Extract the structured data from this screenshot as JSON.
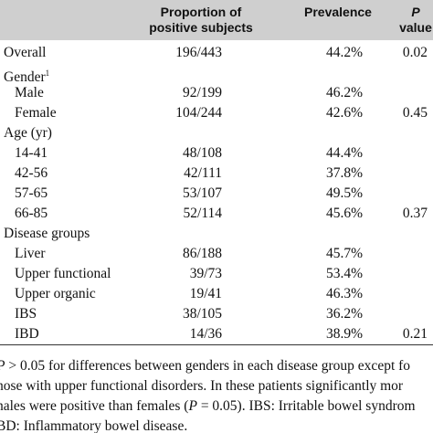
{
  "table": {
    "header": {
      "proportion": [
        "Proportion of",
        "positive subjects"
      ],
      "prevalence": "Prevalence",
      "p": [
        "P",
        "value"
      ]
    },
    "overall": {
      "label": "Overall",
      "proportion": "196/443",
      "prevalence": "44.2%",
      "p": "0.02"
    },
    "groups": [
      {
        "label": "Gender",
        "sup": "1",
        "rows": [
          {
            "label": "Male",
            "proportion": "92/199",
            "prevalence": "46.2%"
          },
          {
            "label": "Female",
            "proportion": "104/244",
            "prevalence": "42.6%",
            "p": "0.45"
          }
        ]
      },
      {
        "label": "Age (yr)",
        "rows": [
          {
            "label": "14-41",
            "proportion": "48/108",
            "prevalence": "44.4%"
          },
          {
            "label": "42-56",
            "proportion": "42/111",
            "prevalence": "37.8%"
          },
          {
            "label": "57-65",
            "proportion": "53/107",
            "prevalence": "49.5%"
          },
          {
            "label": "66-85",
            "proportion": "52/114",
            "prevalence": "45.6%",
            "p": "0.37"
          }
        ]
      },
      {
        "label": "Disease groups",
        "rows": [
          {
            "label": "Liver",
            "proportion": "86/188",
            "prevalence": "45.7%"
          },
          {
            "label": "Upper functional",
            "proportion": "39/73",
            "prevalence": "53.4%"
          },
          {
            "label": "Upper organic",
            "proportion": "19/41",
            "prevalence": "46.3%"
          },
          {
            "label": "IBS",
            "proportion": "38/105",
            "prevalence": "36.2%"
          },
          {
            "label": "IBD",
            "proportion": "14/36",
            "prevalence": "38.9%",
            "p": "0.21"
          }
        ]
      }
    ]
  },
  "footnote": [
    [
      {
        "text": "P",
        "italic": true
      },
      {
        "text": " > 0.05 for differences between genders in each disease group except fo"
      }
    ],
    [
      {
        "text": "hose with upper functional disorders. In these patients significantly mor"
      }
    ],
    [
      {
        "text": "nales were positive than females ("
      },
      {
        "text": "P",
        "italic": true
      },
      {
        "text": " = 0.05). IBS: Irritable bowel syndrom"
      }
    ],
    [
      {
        "text": "BD: Inflammatory bowel disease."
      }
    ]
  ]
}
